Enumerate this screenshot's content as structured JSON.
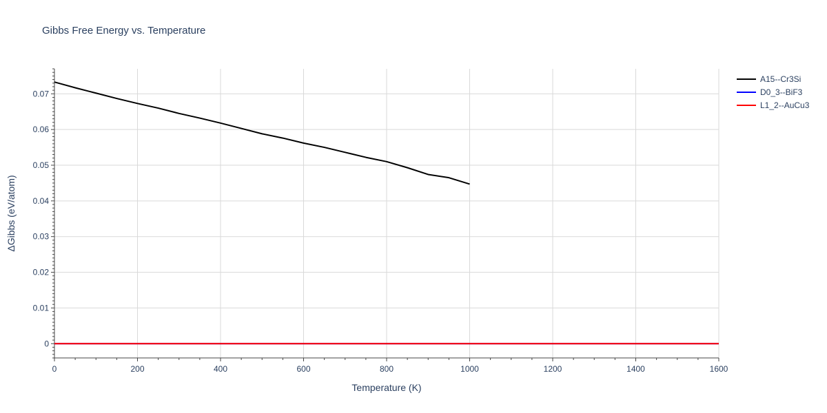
{
  "chart_data": {
    "type": "line",
    "title": "Gibbs Free Energy vs. Temperature",
    "xlabel": "Temperature (K)",
    "ylabel": "ΔGibbs (eV/atom)",
    "xlim": [
      0,
      1600
    ],
    "ylim": [
      -0.004,
      0.077
    ],
    "x_ticks": [
      0,
      200,
      400,
      600,
      800,
      1000,
      1200,
      1400,
      1600
    ],
    "y_ticks": [
      0,
      0.01,
      0.02,
      0.03,
      0.04,
      0.05,
      0.06,
      0.07
    ],
    "y_tick_labels": [
      "0",
      "0.01",
      "0.02",
      "0.03",
      "0.04",
      "0.05",
      "0.06",
      "0.07"
    ],
    "grid": true,
    "legend_position": "top-right",
    "series": [
      {
        "name": "A15--Cr3Si",
        "color": "#000000",
        "x": [
          0,
          50,
          100,
          150,
          200,
          250,
          300,
          350,
          400,
          450,
          500,
          550,
          600,
          650,
          700,
          750,
          800,
          850,
          900,
          950,
          1000
        ],
        "y": [
          0.0733,
          0.0717,
          0.0702,
          0.0687,
          0.0673,
          0.066,
          0.0645,
          0.0632,
          0.0618,
          0.0603,
          0.0588,
          0.0576,
          0.0562,
          0.055,
          0.0536,
          0.0522,
          0.051,
          0.0493,
          0.0474,
          0.0465,
          0.0447
        ]
      },
      {
        "name": "D0_3--BiF3",
        "color": "#0000ff",
        "x": [
          0,
          1600
        ],
        "y": [
          0,
          0
        ]
      },
      {
        "name": "L1_2--AuCu3",
        "color": "#ff0000",
        "x": [
          0,
          1600
        ],
        "y": [
          0,
          0
        ]
      }
    ]
  }
}
